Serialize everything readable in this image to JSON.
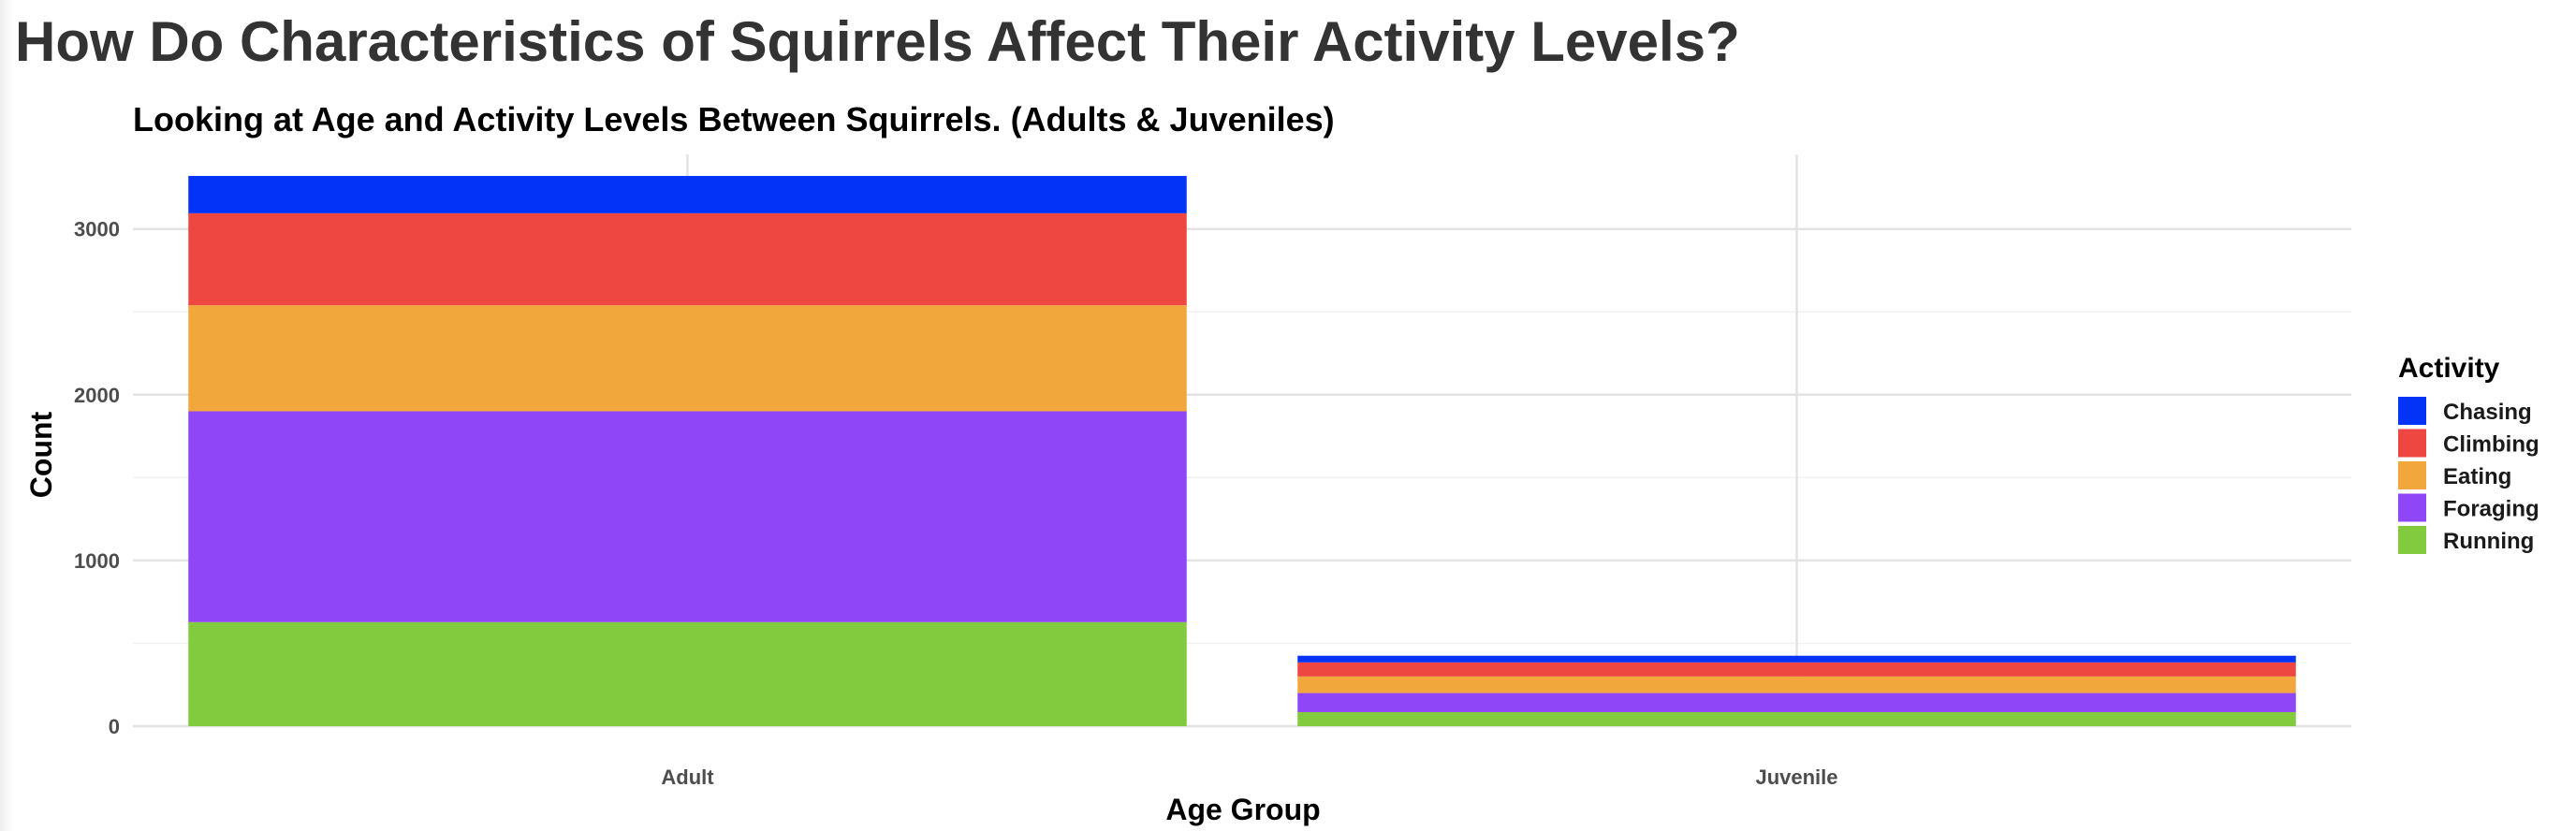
{
  "page": {
    "title": "How Do Characteristics of Squirrels Affect Their Activity Levels?"
  },
  "chart_data": {
    "type": "bar",
    "stacked": true,
    "title": "Looking at Age and Activity Levels Between Squirrels. (Adults & Juveniles)",
    "xlabel": "Age Group",
    "ylabel": "Count",
    "categories": [
      "Adult",
      "Juvenile"
    ],
    "ylim": [
      0,
      3450
    ],
    "yticks": [
      0,
      1000,
      2000,
      3000
    ],
    "grid": true,
    "legend": {
      "title": "Activity",
      "position": "right"
    },
    "series": [
      {
        "name": "Running",
        "color": "#82CA3E",
        "values": [
          628,
          85
        ]
      },
      {
        "name": "Foraging",
        "color": "#8F46F6",
        "values": [
          1272,
          115
        ]
      },
      {
        "name": "Eating",
        "color": "#F2A73C",
        "values": [
          640,
          100
        ]
      },
      {
        "name": "Climbing",
        "color": "#EE4741",
        "values": [
          555,
          85
        ]
      },
      {
        "name": "Chasing",
        "color": "#0233F7",
        "values": [
          225,
          40
        ]
      }
    ]
  }
}
